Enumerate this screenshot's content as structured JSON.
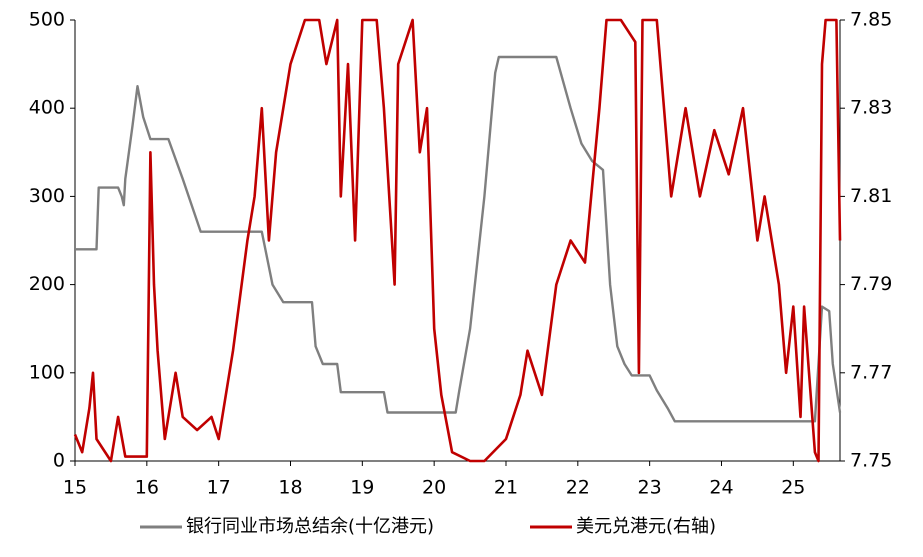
{
  "chart_data": {
    "type": "line",
    "xlim": [
      15,
      25.65
    ],
    "xticks": [
      15,
      16,
      17,
      18,
      19,
      20,
      21,
      22,
      23,
      24,
      25
    ],
    "ylim": [
      0,
      500
    ],
    "yticks": [
      0,
      100,
      200,
      300,
      400,
      500
    ],
    "y2lim": [
      7.75,
      7.85
    ],
    "y2ticks": [
      7.75,
      7.77,
      7.79,
      7.81,
      7.83,
      7.85
    ],
    "grid": false,
    "legend": "bottom",
    "series": [
      {
        "name": "银行同业市场总结余(十亿港元)",
        "color": "#7f7f7f",
        "x": [
          15.0,
          15.3,
          15.33,
          15.6,
          15.65,
          15.68,
          15.7,
          15.8,
          15.87,
          15.95,
          16.05,
          16.3,
          16.5,
          16.75,
          17.5,
          17.6,
          17.75,
          17.9,
          18.3,
          18.35,
          18.45,
          18.65,
          18.7,
          19.0,
          19.3,
          19.35,
          20.0,
          20.3,
          20.35,
          20.5,
          20.7,
          20.85,
          20.9,
          21.7,
          21.9,
          22.05,
          22.2,
          22.35,
          22.45,
          22.55,
          22.65,
          22.75,
          23.0,
          23.1,
          23.25,
          23.35,
          25.3,
          25.4,
          25.5,
          25.55,
          25.65
        ],
        "values": [
          240,
          240,
          310,
          310,
          300,
          290,
          320,
          380,
          425,
          390,
          365,
          365,
          320,
          260,
          260,
          260,
          200,
          180,
          180,
          130,
          110,
          110,
          78,
          78,
          78,
          55,
          55,
          55,
          80,
          150,
          300,
          440,
          458,
          458,
          400,
          360,
          340,
          330,
          200,
          130,
          110,
          97,
          97,
          80,
          60,
          45,
          45,
          175,
          170,
          110,
          55
        ]
      },
      {
        "name": "美元兑港元(右轴)",
        "color": "#c00000",
        "axis": "y2",
        "x": [
          15.0,
          15.1,
          15.2,
          15.25,
          15.3,
          15.5,
          15.6,
          15.7,
          16.0,
          16.05,
          16.1,
          16.15,
          16.25,
          16.4,
          16.5,
          16.7,
          16.9,
          17.0,
          17.2,
          17.4,
          17.5,
          17.6,
          17.7,
          17.8,
          18.0,
          18.2,
          18.4,
          18.5,
          18.65,
          18.7,
          18.8,
          18.9,
          19.0,
          19.2,
          19.3,
          19.45,
          19.5,
          19.7,
          19.8,
          19.9,
          20.0,
          20.1,
          20.25,
          20.5,
          20.7,
          21.0,
          21.2,
          21.3,
          21.5,
          21.7,
          21.9,
          22.1,
          22.3,
          22.4,
          22.6,
          22.8,
          22.85,
          22.9,
          23.1,
          23.3,
          23.5,
          23.7,
          23.9,
          24.1,
          24.3,
          24.5,
          24.6,
          24.8,
          24.9,
          25.0,
          25.1,
          25.15,
          25.3,
          25.35,
          25.4,
          25.45,
          25.6,
          25.65
        ],
        "values": [
          7.756,
          7.752,
          7.762,
          7.77,
          7.755,
          7.75,
          7.76,
          7.751,
          7.751,
          7.82,
          7.79,
          7.775,
          7.755,
          7.77,
          7.76,
          7.757,
          7.76,
          7.755,
          7.775,
          7.8,
          7.81,
          7.83,
          7.8,
          7.82,
          7.84,
          7.85,
          7.85,
          7.84,
          7.85,
          7.81,
          7.84,
          7.8,
          7.85,
          7.85,
          7.83,
          7.79,
          7.84,
          7.85,
          7.82,
          7.83,
          7.78,
          7.765,
          7.752,
          7.75,
          7.75,
          7.755,
          7.765,
          7.775,
          7.765,
          7.79,
          7.8,
          7.795,
          7.83,
          7.85,
          7.85,
          7.845,
          7.77,
          7.85,
          7.85,
          7.81,
          7.83,
          7.81,
          7.825,
          7.815,
          7.83,
          7.8,
          7.81,
          7.79,
          7.77,
          7.785,
          7.76,
          7.785,
          7.752,
          7.75,
          7.84,
          7.85,
          7.85,
          7.8
        ]
      }
    ]
  }
}
